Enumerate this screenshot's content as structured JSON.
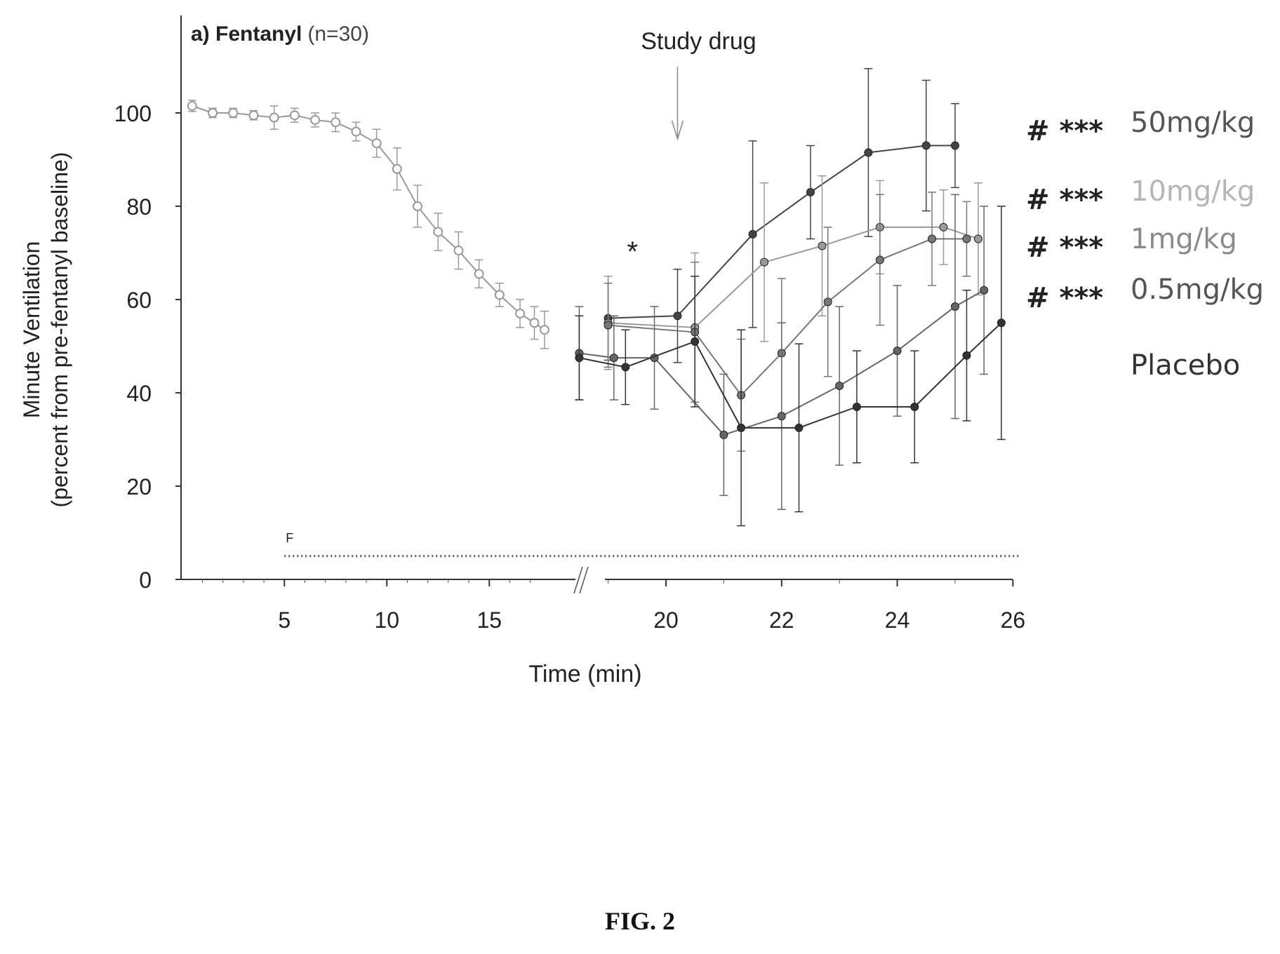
{
  "figure_caption": "FIG. 2",
  "chart_data": {
    "type": "line",
    "title_bold": "a) Fentanyl",
    "title_rest": "(n=30)",
    "xlabel": "Time (min)",
    "ylabel_line1": "Minute Ventilation",
    "ylabel_line2": "(percent from pre-fentanyl baseline)",
    "ylim": [
      0,
      120
    ],
    "yticks": [
      "0",
      "20",
      "40",
      "60",
      "80",
      "100"
    ],
    "ytick_values": [
      0,
      20,
      40,
      60,
      80,
      100
    ],
    "xticks_left": [
      {
        "value": 5,
        "label": "5"
      },
      {
        "value": 10,
        "label": "10"
      },
      {
        "value": 15,
        "label": "15"
      }
    ],
    "xticks_right": [
      {
        "value": 20,
        "label": "20"
      },
      {
        "value": 22,
        "label": "22"
      },
      {
        "value": 24,
        "label": "24"
      },
      {
        "value": 26,
        "label": "26"
      }
    ],
    "x_break_marker": "axis break between 17 and 19 min",
    "annotation_study_drug": "Study drug",
    "study_drug_time": 20.2,
    "annotation_star": "*",
    "star_time": 19.3,
    "annotation_f": "F",
    "fentanyl_infusion": {
      "start": 5,
      "end": 25.9,
      "level": 5
    },
    "legend": [
      {
        "marks": "# ***",
        "label": "50mg/kg",
        "color": "#555555"
      },
      {
        "marks": "# ***",
        "label": "10mg/kg",
        "color": "#b5b5b5"
      },
      {
        "marks": "# ***",
        "label": "1mg/kg",
        "color": "#8a8a8a"
      },
      {
        "marks": "# ***",
        "label": "0.5mg/kg",
        "color": "#555555"
      },
      {
        "marks": "",
        "label": "Placebo",
        "color": "#333333"
      }
    ],
    "baseline_series": {
      "color": "#999999",
      "points": [
        {
          "x": 0.5,
          "y": 101.5,
          "err": 1.2
        },
        {
          "x": 1.5,
          "y": 100,
          "err": 1
        },
        {
          "x": 2.5,
          "y": 100,
          "err": 1
        },
        {
          "x": 3.5,
          "y": 99.5,
          "err": 1
        },
        {
          "x": 4.5,
          "y": 99,
          "err": 2.5
        },
        {
          "x": 5.5,
          "y": 99.5,
          "err": 1.5
        },
        {
          "x": 6.5,
          "y": 98.5,
          "err": 1.5
        },
        {
          "x": 7.5,
          "y": 98,
          "err": 2
        },
        {
          "x": 8.5,
          "y": 96,
          "err": 2
        },
        {
          "x": 9.5,
          "y": 93.5,
          "err": 3
        },
        {
          "x": 10.5,
          "y": 88,
          "err": 4.5
        },
        {
          "x": 11.5,
          "y": 80,
          "err": 4.5
        },
        {
          "x": 12.5,
          "y": 74.5,
          "err": 4
        },
        {
          "x": 13.5,
          "y": 70.5,
          "err": 4
        },
        {
          "x": 14.5,
          "y": 65.5,
          "err": 3
        },
        {
          "x": 15.5,
          "y": 61,
          "err": 2.5
        },
        {
          "x": 16.5,
          "y": 57,
          "err": 3
        },
        {
          "x": 17.2,
          "y": 55,
          "err": 3.5
        },
        {
          "x": 17.9,
          "y": 53.5,
          "err": 4
        }
      ]
    },
    "series": [
      {
        "name": "50mg/kg",
        "color": "#444444",
        "points": [
          {
            "x": 19.0,
            "y": 56,
            "err": 9
          },
          {
            "x": 20.2,
            "y": 56.5,
            "err": 10
          },
          {
            "x": 21.5,
            "y": 74,
            "err": 20
          },
          {
            "x": 22.5,
            "y": 83,
            "err": 10
          },
          {
            "x": 23.5,
            "y": 91.5,
            "err": 18
          },
          {
            "x": 24.5,
            "y": 93,
            "err": 14
          },
          {
            "x": 25.0,
            "y": 93,
            "err": 9
          }
        ]
      },
      {
        "name": "10mg/kg",
        "color": "#9a9a9a",
        "points": [
          {
            "x": 19.0,
            "y": 55,
            "err": 10
          },
          {
            "x": 20.5,
            "y": 54,
            "err": 16
          },
          {
            "x": 21.7,
            "y": 68,
            "err": 17
          },
          {
            "x": 22.7,
            "y": 71.5,
            "err": 15
          },
          {
            "x": 23.7,
            "y": 75.5,
            "err": 10
          },
          {
            "x": 24.8,
            "y": 75.5,
            "err": 8
          },
          {
            "x": 25.4,
            "y": 73,
            "err": 12
          }
        ]
      },
      {
        "name": "1mg/kg",
        "color": "#777777",
        "points": [
          {
            "x": 19.0,
            "y": 54.5,
            "err": 9
          },
          {
            "x": 20.5,
            "y": 53,
            "err": 15
          },
          {
            "x": 21.3,
            "y": 39.5,
            "err": 12
          },
          {
            "x": 22.0,
            "y": 48.5,
            "err": 16
          },
          {
            "x": 22.8,
            "y": 59.5,
            "err": 16
          },
          {
            "x": 23.7,
            "y": 68.5,
            "err": 14
          },
          {
            "x": 24.6,
            "y": 73,
            "err": 10
          },
          {
            "x": 25.2,
            "y": 73,
            "err": 8
          }
        ]
      },
      {
        "name": "0.5mg/kg",
        "color": "#666666",
        "points": [
          {
            "x": 18.5,
            "y": 48.5,
            "err": 10
          },
          {
            "x": 19.1,
            "y": 47.5,
            "err": 9
          },
          {
            "x": 19.8,
            "y": 47.5,
            "err": 11
          },
          {
            "x": 21.0,
            "y": 31,
            "err": 13
          },
          {
            "x": 22.0,
            "y": 35,
            "err": 20
          },
          {
            "x": 23.0,
            "y": 41.5,
            "err": 17
          },
          {
            "x": 24.0,
            "y": 49,
            "err": 14
          },
          {
            "x": 25.0,
            "y": 58.5,
            "err": 24
          },
          {
            "x": 25.5,
            "y": 62,
            "err": 18
          }
        ]
      },
      {
        "name": "Placebo",
        "color": "#333333",
        "points": [
          {
            "x": 18.5,
            "y": 47.5,
            "err": 9
          },
          {
            "x": 19.3,
            "y": 45.5,
            "err": 8
          },
          {
            "x": 20.5,
            "y": 51,
            "err": 14
          },
          {
            "x": 21.3,
            "y": 32.5,
            "err": 21
          },
          {
            "x": 22.3,
            "y": 32.5,
            "err": 18
          },
          {
            "x": 23.3,
            "y": 37,
            "err": 12
          },
          {
            "x": 24.3,
            "y": 37,
            "err": 12
          },
          {
            "x": 25.2,
            "y": 48,
            "err": 14
          },
          {
            "x": 25.8,
            "y": 55,
            "err": 25
          }
        ]
      }
    ]
  }
}
